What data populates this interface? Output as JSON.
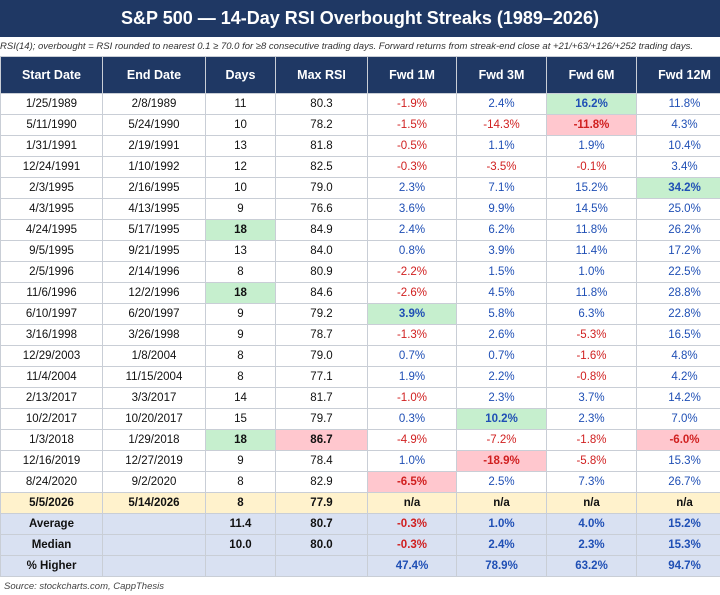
{
  "title": "S&P 500 — 14-Day RSI Overbought Streaks (1989–2026)",
  "subtitle": "RSI(14); overbought = RSI rounded to nearest 0.1 ≥ 70.0 for ≥8 consecutive trading days. Forward returns from streak-end close at +21/+63/+126/+252 trading days.",
  "columns": [
    "Start Date",
    "End Date",
    "Days",
    "Max RSI",
    "Fwd 1M",
    "Fwd 3M",
    "Fwd 6M",
    "Fwd 12M"
  ],
  "rows": [
    {
      "cells": [
        "1/25/1989",
        "2/8/1989",
        "11",
        "80.3",
        "-1.9%",
        "2.4%",
        "16.2%",
        "11.8%"
      ],
      "highlight": {
        "6": "green"
      }
    },
    {
      "cells": [
        "5/11/1990",
        "5/24/1990",
        "10",
        "78.2",
        "-1.5%",
        "-14.3%",
        "-11.8%",
        "4.3%"
      ],
      "highlight": {
        "6": "red"
      }
    },
    {
      "cells": [
        "1/31/1991",
        "2/19/1991",
        "13",
        "81.8",
        "-0.5%",
        "1.1%",
        "1.9%",
        "10.4%"
      ],
      "highlight": {}
    },
    {
      "cells": [
        "12/24/1991",
        "1/10/1992",
        "12",
        "82.5",
        "-0.3%",
        "-3.5%",
        "-0.1%",
        "3.4%"
      ],
      "highlight": {}
    },
    {
      "cells": [
        "2/3/1995",
        "2/16/1995",
        "10",
        "79.0",
        "2.3%",
        "7.1%",
        "15.2%",
        "34.2%"
      ],
      "highlight": {
        "7": "green"
      }
    },
    {
      "cells": [
        "4/3/1995",
        "4/13/1995",
        "9",
        "76.6",
        "3.6%",
        "9.9%",
        "14.5%",
        "25.0%"
      ],
      "highlight": {}
    },
    {
      "cells": [
        "4/24/1995",
        "5/17/1995",
        "18",
        "84.9",
        "2.4%",
        "6.2%",
        "11.8%",
        "26.2%"
      ],
      "highlight": {
        "2": "green"
      }
    },
    {
      "cells": [
        "9/5/1995",
        "9/21/1995",
        "13",
        "84.0",
        "0.8%",
        "3.9%",
        "11.4%",
        "17.2%"
      ],
      "highlight": {}
    },
    {
      "cells": [
        "2/5/1996",
        "2/14/1996",
        "8",
        "80.9",
        "-2.2%",
        "1.5%",
        "1.0%",
        "22.5%"
      ],
      "highlight": {}
    },
    {
      "cells": [
        "11/6/1996",
        "12/2/1996",
        "18",
        "84.6",
        "-2.6%",
        "4.5%",
        "11.8%",
        "28.8%"
      ],
      "highlight": {
        "2": "green"
      }
    },
    {
      "cells": [
        "6/10/1997",
        "6/20/1997",
        "9",
        "79.2",
        "3.9%",
        "5.8%",
        "6.3%",
        "22.8%"
      ],
      "highlight": {
        "4": "green"
      }
    },
    {
      "cells": [
        "3/16/1998",
        "3/26/1998",
        "9",
        "78.7",
        "-1.3%",
        "2.6%",
        "-5.3%",
        "16.5%"
      ],
      "highlight": {}
    },
    {
      "cells": [
        "12/29/2003",
        "1/8/2004",
        "8",
        "79.0",
        "0.7%",
        "0.7%",
        "-1.6%",
        "4.8%"
      ],
      "highlight": {}
    },
    {
      "cells": [
        "11/4/2004",
        "11/15/2004",
        "8",
        "77.1",
        "1.9%",
        "2.2%",
        "-0.8%",
        "4.2%"
      ],
      "highlight": {}
    },
    {
      "cells": [
        "2/13/2017",
        "3/3/2017",
        "14",
        "81.7",
        "-1.0%",
        "2.3%",
        "3.7%",
        "14.2%"
      ],
      "highlight": {}
    },
    {
      "cells": [
        "10/2/2017",
        "10/20/2017",
        "15",
        "79.7",
        "0.3%",
        "10.2%",
        "2.3%",
        "7.0%"
      ],
      "highlight": {
        "5": "green"
      }
    },
    {
      "cells": [
        "1/3/2018",
        "1/29/2018",
        "18",
        "86.7",
        "-4.9%",
        "-7.2%",
        "-1.8%",
        "-6.0%"
      ],
      "highlight": {
        "2": "green",
        "3": "red",
        "7": "red"
      }
    },
    {
      "cells": [
        "12/16/2019",
        "12/27/2019",
        "9",
        "78.4",
        "1.0%",
        "-18.9%",
        "-5.8%",
        "15.3%"
      ],
      "highlight": {
        "5": "red"
      }
    },
    {
      "cells": [
        "8/24/2020",
        "9/2/2020",
        "8",
        "82.9",
        "-6.5%",
        "2.5%",
        "7.3%",
        "26.7%"
      ],
      "highlight": {
        "4": "red"
      }
    }
  ],
  "current_row": {
    "cells": [
      "5/5/2026",
      "5/14/2026",
      "8",
      "77.9",
      "n/a",
      "n/a",
      "n/a",
      "n/a"
    ]
  },
  "summary_rows": [
    {
      "cells": [
        "Average",
        "",
        "11.4",
        "80.7",
        "-0.3%",
        "1.0%",
        "4.0%",
        "15.2%"
      ]
    },
    {
      "cells": [
        "Median",
        "",
        "10.0",
        "80.0",
        "-0.3%",
        "2.4%",
        "2.3%",
        "15.3%"
      ]
    },
    {
      "cells": [
        "% Higher",
        "",
        "",
        "",
        "47.4%",
        "78.9%",
        "63.2%",
        "94.7%"
      ]
    }
  ],
  "source": "Source: stockcharts.com, CappThesis",
  "colors": {
    "header_bg": "#1f3864",
    "positive_text": "#1f4fb5",
    "negative_text": "#d01f1f",
    "highlight_green": "#c6efce",
    "highlight_red": "#ffc7ce",
    "current_row_bg": "#fff2cc",
    "summary_bg": "#d9e1f2"
  }
}
